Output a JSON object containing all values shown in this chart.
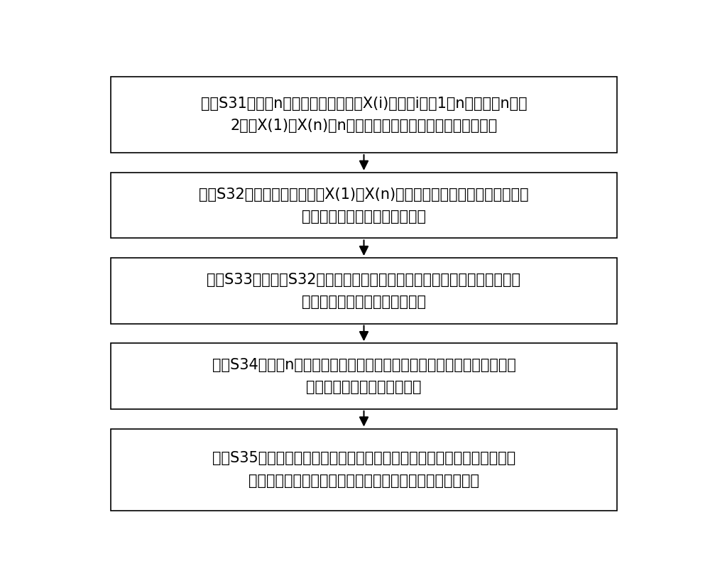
{
  "background_color": "#ffffff",
  "box_border_color": "#000000",
  "box_fill_color": "#ffffff",
  "arrow_color": "#000000",
  "text_color": "#000000",
  "font_size": 15.0,
  "boxes": [
    {
      "label": "步骤S31、采集n个光功率电平量化值X(i)，其中i为从1到n的整数，n大于\n2，从X(1)到X(n)的n个光功率电平量化值存放在一维数组中"
    },
    {
      "label": "步骤S32、在一维数组中，从X(1)到X(n)逐个比较光功率电平量化值，并按\n照由大到小顺序排列成有序序列"
    },
    {
      "label": "步骤S33、从步骤S32的有序序列中，找到光功率电平量化值的最大值，和\n找到光功率电平量化值的最小值"
    },
    {
      "label": "步骤S34、求取n个光功率电平量化值的和，并去除光功率电平量化的最大\n值和光功率电平量化的最小值"
    },
    {
      "label": "步骤S35、对去除光功率电平量化的最大值和光功率电平量化的最小值之后\n的光功率电平量化值的和求平均得到光功率电平量化平均值"
    }
  ],
  "fig_width": 10.0,
  "fig_height": 8.18
}
